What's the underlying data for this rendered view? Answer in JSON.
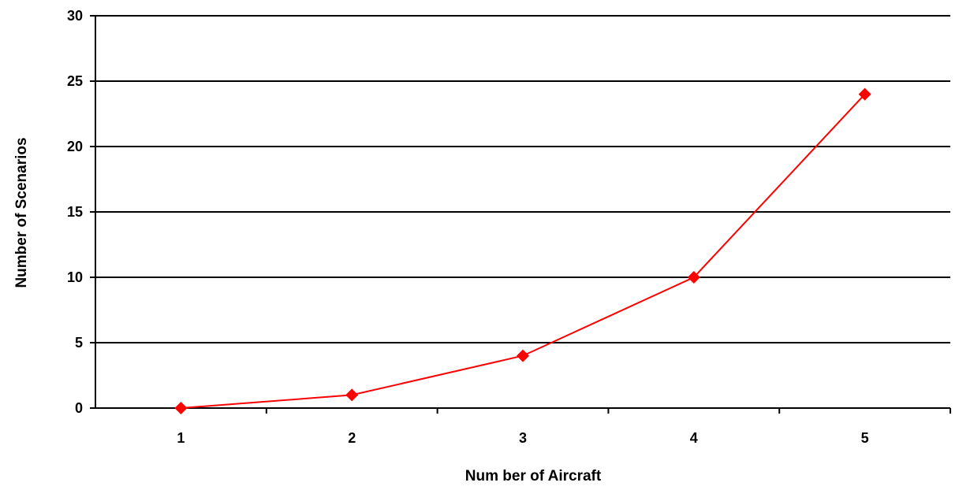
{
  "chart_data": {
    "type": "line",
    "title": "",
    "xlabel": "Num ber of Aircraft",
    "ylabel": "Number of Scenarios",
    "categories": [
      "1",
      "2",
      "3",
      "4",
      "5"
    ],
    "series": [
      {
        "values": [
          0,
          1,
          4,
          10,
          24
        ]
      }
    ],
    "ylim": [
      0,
      30
    ],
    "yticks": [
      "0",
      "5",
      "10",
      "15",
      "20",
      "25",
      "30"
    ],
    "grid": "horizontal",
    "legend": "none",
    "colors": {
      "series_line": "#ff0000",
      "series_marker": "#ff0000",
      "grid": "#000000",
      "axis": "#000000"
    },
    "marker": "diamond"
  }
}
